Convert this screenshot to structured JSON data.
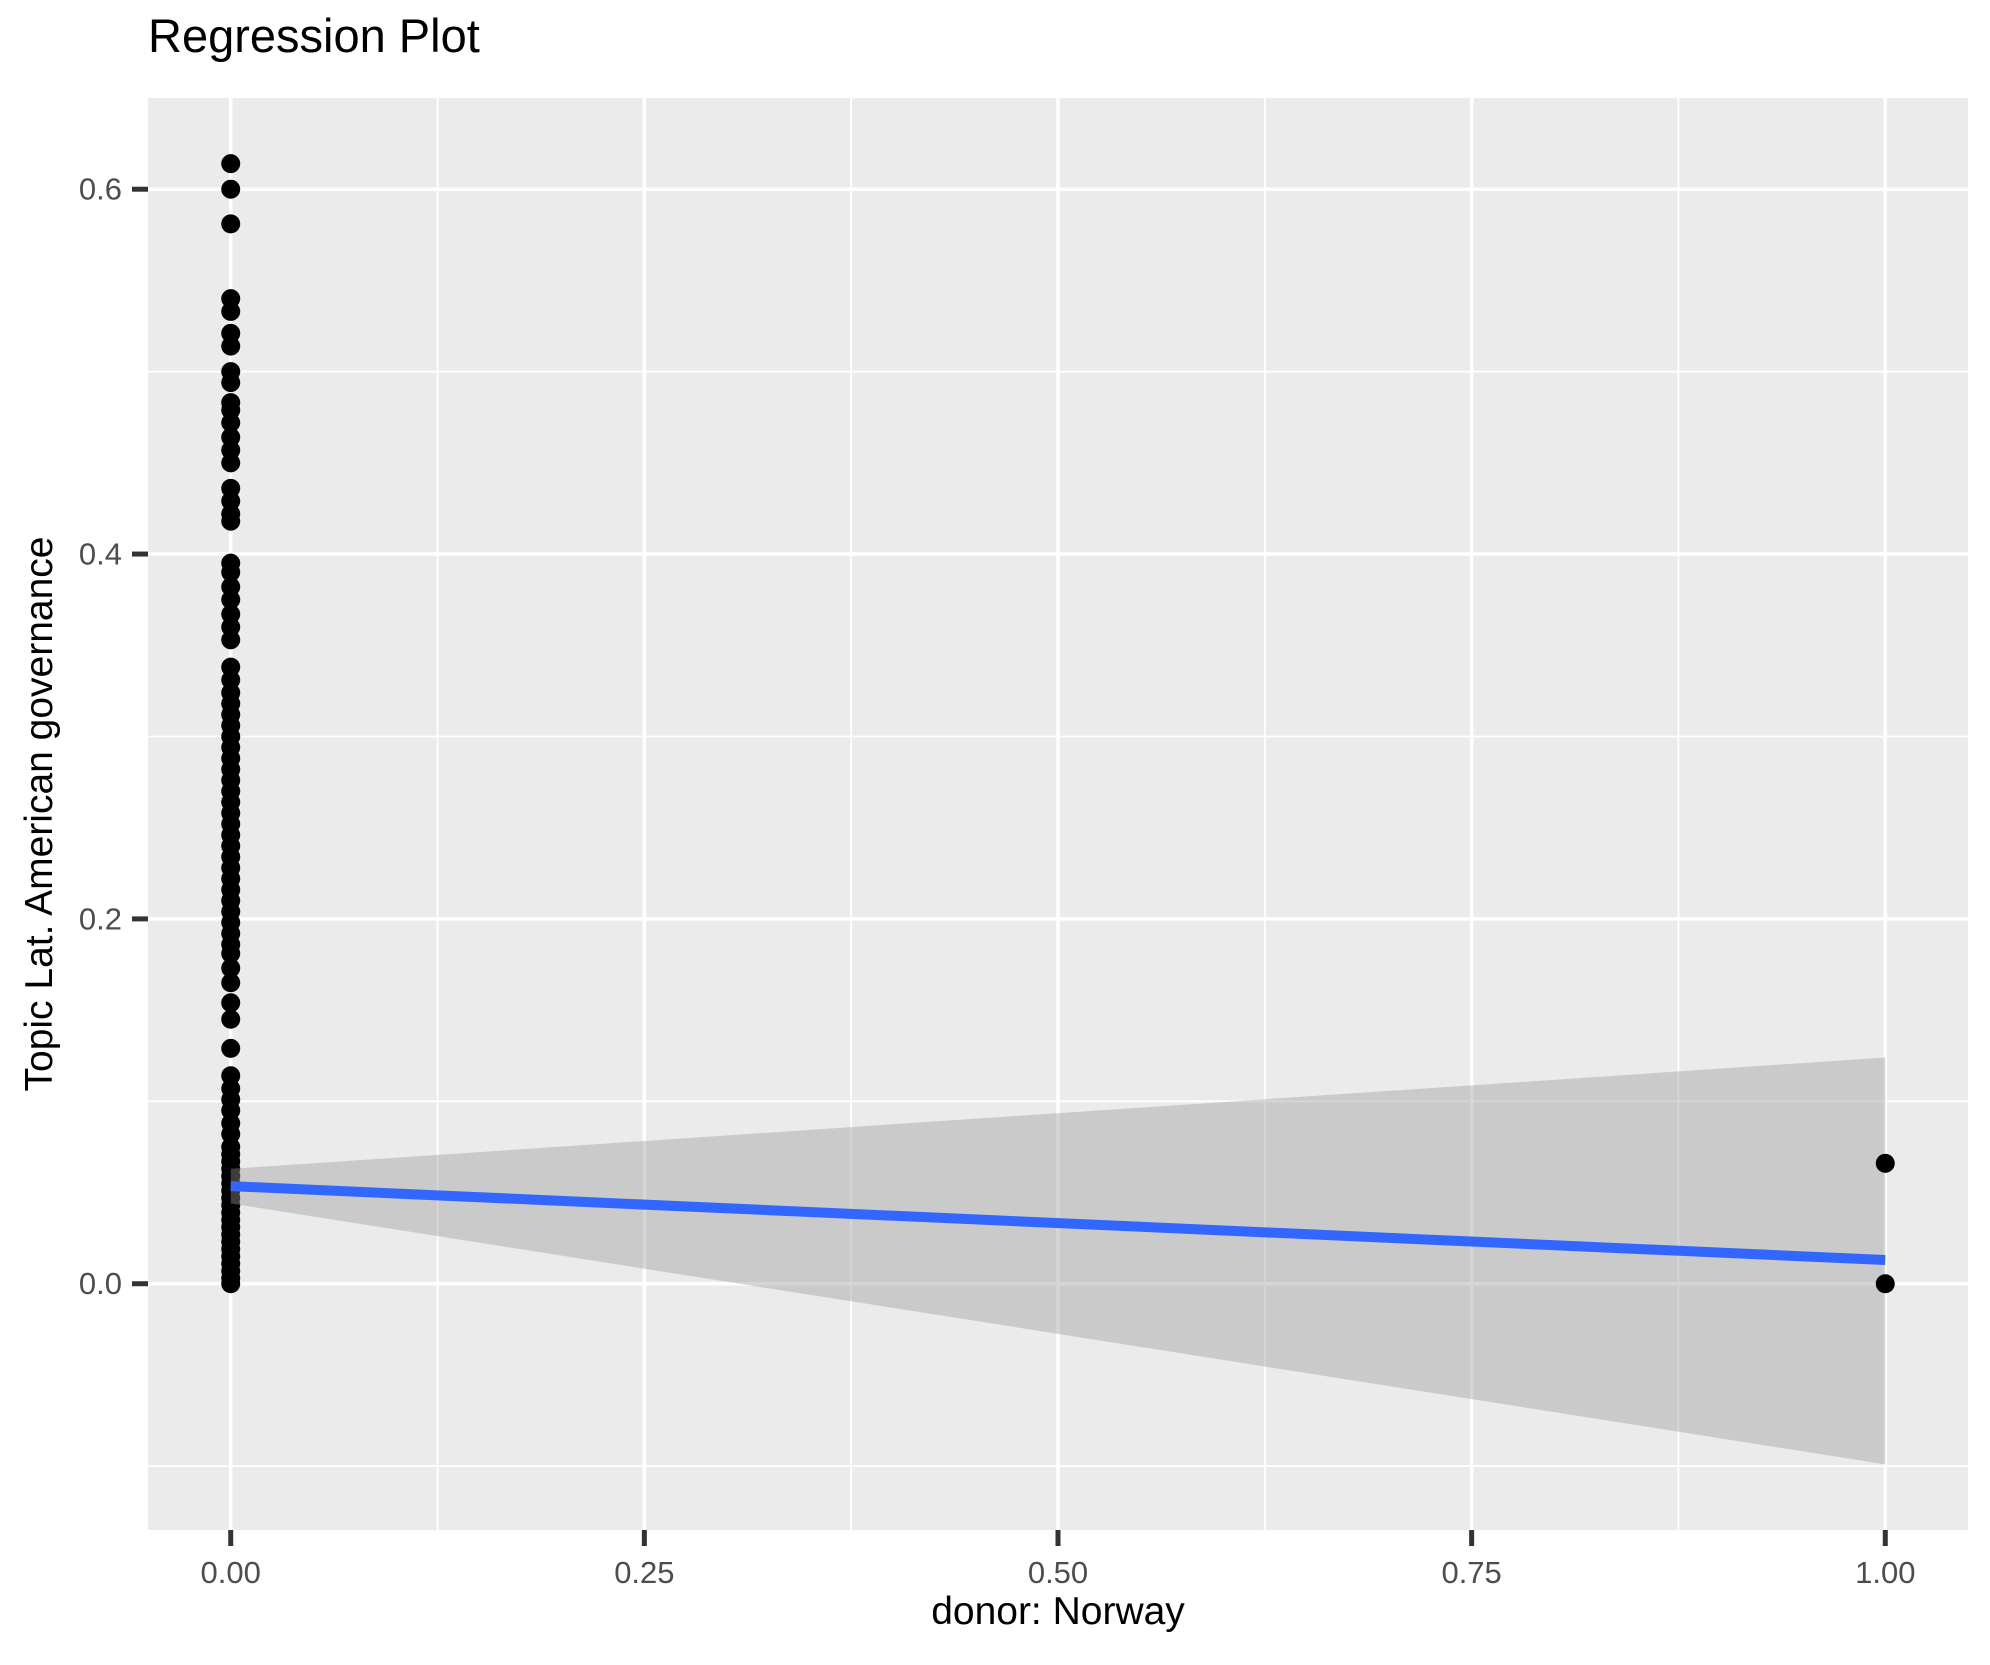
{
  "title": "Regression Plot",
  "chart_data": {
    "type": "scatter",
    "title": "Regression Plot",
    "xlabel": "donor: Norway",
    "ylabel": "Topic Lat. American governance",
    "xlim": [
      -0.05,
      1.05
    ],
    "ylim": [
      -0.135,
      0.65
    ],
    "grid": true,
    "legend": false,
    "x_ticks": {
      "values": [
        0,
        0.25,
        0.5,
        0.75,
        1.0
      ],
      "labels": [
        "0.00",
        "0.25",
        "0.50",
        "0.75",
        "1.00"
      ]
    },
    "y_ticks": {
      "values": [
        0,
        0.2,
        0.4,
        0.6
      ],
      "labels": [
        "0.0",
        "0.2",
        "0.4",
        "0.6"
      ]
    },
    "x_minor": [
      0.125,
      0.375,
      0.625,
      0.875
    ],
    "y_minor": [
      -0.1,
      0.1,
      0.3,
      0.5
    ],
    "colors": {
      "panel_bg": "#EBEBEB",
      "grid": "#FFFFFF",
      "tick": "#333333",
      "tick_label": "#4D4D4D",
      "title": "#000000",
      "point": "#000000",
      "fit_line": "#3366FF",
      "ribbon": "rgba(153,153,153,0.4)"
    },
    "series": [
      {
        "name": "observations",
        "type": "points",
        "color": "#000000",
        "points": [
          [
            0,
            0.614
          ],
          [
            0,
            0.6
          ],
          [
            0,
            0.581
          ],
          [
            0,
            0.54
          ],
          [
            0,
            0.533
          ],
          [
            0,
            0.521
          ],
          [
            0,
            0.514
          ],
          [
            0,
            0.5
          ],
          [
            0,
            0.494
          ],
          [
            0,
            0.483
          ],
          [
            0,
            0.479
          ],
          [
            0,
            0.472
          ],
          [
            0,
            0.464
          ],
          [
            0,
            0.457
          ],
          [
            0,
            0.45
          ],
          [
            0,
            0.436
          ],
          [
            0,
            0.429
          ],
          [
            0,
            0.422
          ],
          [
            0,
            0.418
          ],
          [
            0,
            0.395
          ],
          [
            0,
            0.39
          ],
          [
            0,
            0.382
          ],
          [
            0,
            0.375
          ],
          [
            0,
            0.367
          ],
          [
            0,
            0.36
          ],
          [
            0,
            0.353
          ],
          [
            0,
            0.338
          ],
          [
            0,
            0.331
          ],
          [
            0,
            0.324
          ],
          [
            0,
            0.318
          ],
          [
            0,
            0.312
          ],
          [
            0,
            0.306
          ],
          [
            0,
            0.3
          ],
          [
            0,
            0.294
          ],
          [
            0,
            0.288
          ],
          [
            0,
            0.282
          ],
          [
            0,
            0.276
          ],
          [
            0,
            0.27
          ],
          [
            0,
            0.264
          ],
          [
            0,
            0.258
          ],
          [
            0,
            0.252
          ],
          [
            0,
            0.246
          ],
          [
            0,
            0.24
          ],
          [
            0,
            0.234
          ],
          [
            0,
            0.228
          ],
          [
            0,
            0.222
          ],
          [
            0,
            0.216
          ],
          [
            0,
            0.21
          ],
          [
            0,
            0.204
          ],
          [
            0,
            0.198
          ],
          [
            0,
            0.192
          ],
          [
            0,
            0.186
          ],
          [
            0,
            0.181
          ],
          [
            0,
            0.173
          ],
          [
            0,
            0.165
          ],
          [
            0,
            0.154
          ],
          [
            0,
            0.145
          ],
          [
            0,
            0.129
          ],
          [
            0,
            0.114
          ],
          [
            0,
            0.107
          ],
          [
            0,
            0.101
          ],
          [
            0,
            0.095
          ],
          [
            0,
            0.088
          ],
          [
            0,
            0.082
          ],
          [
            0,
            0.075
          ],
          [
            0,
            0.071
          ],
          [
            0,
            0.067
          ],
          [
            0,
            0.063
          ],
          [
            0,
            0.059
          ],
          [
            0,
            0.055
          ],
          [
            0,
            0.051
          ],
          [
            0,
            0.047
          ],
          [
            0,
            0.043
          ],
          [
            0,
            0.039
          ],
          [
            0,
            0.035
          ],
          [
            0,
            0.031
          ],
          [
            0,
            0.027
          ],
          [
            0,
            0.023
          ],
          [
            0,
            0.019
          ],
          [
            0,
            0.015
          ],
          [
            0,
            0.011
          ],
          [
            0,
            0.007
          ],
          [
            0,
            0.003
          ],
          [
            0,
            0.0
          ],
          [
            1,
            0.066
          ],
          [
            1,
            0.0
          ]
        ]
      },
      {
        "name": "confidence-band",
        "type": "ribbon",
        "color": "rgba(153,153,153,0.4)",
        "x": [
          0,
          1
        ],
        "upper": [
          0.063,
          0.124
        ],
        "lower": [
          0.044,
          -0.099
        ]
      },
      {
        "name": "fit",
        "type": "line",
        "color": "#3366FF",
        "points": [
          [
            0,
            0.0535
          ],
          [
            1,
            0.013
          ]
        ]
      }
    ]
  }
}
